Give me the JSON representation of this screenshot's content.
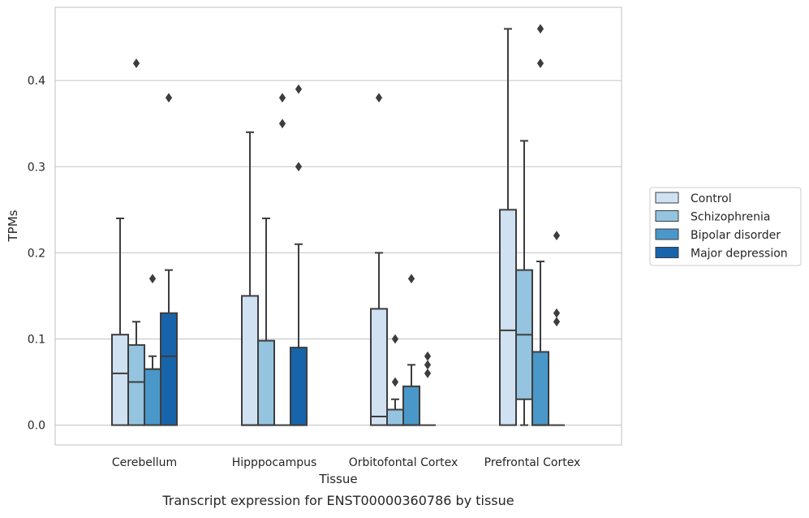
{
  "chart_data": {
    "type": "box",
    "title": "",
    "caption": "Transcript expression for ENST00000360786 by tissue",
    "xlabel": "Tissue",
    "ylabel": "TPMs",
    "ylim": [
      -0.023,
      0.485
    ],
    "yticks": [
      0.0,
      0.1,
      0.2,
      0.3,
      0.4
    ],
    "ytick_labels": [
      "0.0",
      "0.1",
      "0.2",
      "0.3",
      "0.4"
    ],
    "grid": "horizontal",
    "legend_position": "right",
    "categories": [
      "Cerebellum",
      "Hipppocampus",
      "Orbitofontal Cortex",
      "Prefrontal Cortex"
    ],
    "series": [
      {
        "name": "Control",
        "color": "#d0e1f2",
        "boxes": [
          {
            "q1": 0.0,
            "median": 0.06,
            "q3": 0.105,
            "whisker_low": 0.0,
            "whisker_high": 0.24,
            "outliers": []
          },
          {
            "q1": 0.0,
            "median": 0.0,
            "q3": 0.15,
            "whisker_low": 0.0,
            "whisker_high": 0.34,
            "outliers": []
          },
          {
            "q1": 0.0,
            "median": 0.01,
            "q3": 0.135,
            "whisker_low": 0.0,
            "whisker_high": 0.2,
            "outliers": [
              0.38
            ]
          },
          {
            "q1": 0.0,
            "median": 0.11,
            "q3": 0.25,
            "whisker_low": 0.0,
            "whisker_high": 0.46,
            "outliers": []
          }
        ]
      },
      {
        "name": "Schizophrenia",
        "color": "#94c4df",
        "boxes": [
          {
            "q1": 0.0,
            "median": 0.05,
            "q3": 0.093,
            "whisker_low": 0.0,
            "whisker_high": 0.12,
            "outliers": [
              0.42
            ]
          },
          {
            "q1": 0.0,
            "median": 0.0,
            "q3": 0.098,
            "whisker_low": 0.0,
            "whisker_high": 0.24,
            "outliers": []
          },
          {
            "q1": 0.0,
            "median": 0.0,
            "q3": 0.018,
            "whisker_low": 0.0,
            "whisker_high": 0.03,
            "outliers": [
              0.05,
              0.1
            ]
          },
          {
            "q1": 0.03,
            "median": 0.105,
            "q3": 0.18,
            "whisker_low": 0.0,
            "whisker_high": 0.33,
            "outliers": []
          }
        ]
      },
      {
        "name": "Bipolar disorder",
        "color": "#4a98c9",
        "boxes": [
          {
            "q1": 0.0,
            "median": 0.065,
            "q3": 0.065,
            "whisker_low": 0.0,
            "whisker_high": 0.08,
            "outliers": [
              0.17
            ]
          },
          {
            "q1": 0.0,
            "median": 0.0,
            "q3": 0.0,
            "whisker_low": 0.0,
            "whisker_high": 0.0,
            "outliers": [
              0.35,
              0.38
            ]
          },
          {
            "q1": 0.0,
            "median": 0.0,
            "q3": 0.045,
            "whisker_low": 0.0,
            "whisker_high": 0.07,
            "outliers": [
              0.17
            ]
          },
          {
            "q1": 0.0,
            "median": 0.0,
            "q3": 0.085,
            "whisker_low": 0.0,
            "whisker_high": 0.19,
            "outliers": [
              0.42,
              0.46
            ]
          }
        ]
      },
      {
        "name": "Major depression",
        "color": "#1764ab",
        "boxes": [
          {
            "q1": 0.0,
            "median": 0.08,
            "q3": 0.13,
            "whisker_low": 0.0,
            "whisker_high": 0.18,
            "outliers": [
              0.38
            ]
          },
          {
            "q1": 0.0,
            "median": 0.0,
            "q3": 0.09,
            "whisker_low": 0.0,
            "whisker_high": 0.21,
            "outliers": [
              0.3,
              0.39
            ]
          },
          {
            "q1": 0.0,
            "median": 0.0,
            "q3": 0.0,
            "whisker_low": 0.0,
            "whisker_high": 0.0,
            "outliers": [
              0.06,
              0.07,
              0.08
            ]
          },
          {
            "q1": 0.0,
            "median": 0.0,
            "q3": 0.0,
            "whisker_low": 0.0,
            "whisker_high": 0.0,
            "outliers": [
              0.12,
              0.13,
              0.22
            ]
          }
        ]
      }
    ]
  }
}
